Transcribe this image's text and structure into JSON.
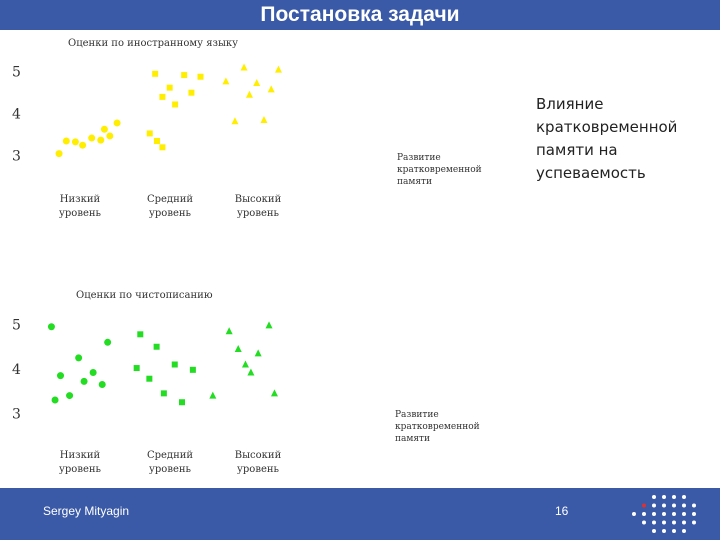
{
  "slide": {
    "title": "Постановка задачи",
    "side_note": "Влияние кратковременной памяти на успеваемость",
    "footer_author": "Sergey Mityagin",
    "page_number": "16"
  },
  "colors": {
    "bar": "#3a5aa8",
    "chart1_marker": "#ffee00",
    "chart2_marker": "#22dd22"
  },
  "icons": {
    "logo": "dot-grid-logo"
  },
  "chart_data": [
    {
      "type": "scatter",
      "title": "Оценки по иностранному языку",
      "xlabel": "Развитие кратковременной памяти",
      "ylabel": "",
      "yticks": [
        "3",
        "4",
        "5"
      ],
      "ylim": [
        2.85,
        5.35
      ],
      "categories": [
        "Низкий уровень",
        "Средний уровень",
        "Высокий уровень"
      ],
      "series": [
        {
          "marker": "circle",
          "points": [
            {
              "x": 0.1,
              "y": 3.05
            },
            {
              "x": 0.18,
              "y": 3.35
            },
            {
              "x": 0.28,
              "y": 3.33
            },
            {
              "x": 0.36,
              "y": 3.25
            },
            {
              "x": 0.46,
              "y": 3.42
            },
            {
              "x": 0.56,
              "y": 3.37
            },
            {
              "x": 0.6,
              "y": 3.63
            },
            {
              "x": 0.66,
              "y": 3.47
            },
            {
              "x": 0.74,
              "y": 3.78
            }
          ]
        },
        {
          "marker": "square",
          "points": [
            {
              "x": 1.1,
              "y": 3.53
            },
            {
              "x": 1.18,
              "y": 3.35
            },
            {
              "x": 1.24,
              "y": 3.2
            },
            {
              "x": 1.16,
              "y": 4.95
            },
            {
              "x": 1.24,
              "y": 4.4
            },
            {
              "x": 1.32,
              "y": 4.62
            },
            {
              "x": 1.38,
              "y": 4.22
            },
            {
              "x": 1.48,
              "y": 4.92
            },
            {
              "x": 1.56,
              "y": 4.5
            },
            {
              "x": 1.66,
              "y": 4.88
            }
          ]
        },
        {
          "marker": "triangle",
          "points": [
            {
              "x": 1.94,
              "y": 4.77
            },
            {
              "x": 2.04,
              "y": 3.82
            },
            {
              "x": 2.14,
              "y": 5.1
            },
            {
              "x": 2.2,
              "y": 4.45
            },
            {
              "x": 2.28,
              "y": 4.73
            },
            {
              "x": 2.36,
              "y": 3.85
            },
            {
              "x": 2.44,
              "y": 4.58
            },
            {
              "x": 2.52,
              "y": 5.05
            }
          ]
        }
      ]
    },
    {
      "type": "scatter",
      "title": "Оценки по чистописанию",
      "xlabel": "Развитие кратковременной памяти",
      "ylabel": "",
      "yticks": [
        "3",
        "4",
        "5"
      ],
      "ylim": [
        2.85,
        5.35
      ],
      "categories": [
        "Низкий уровень",
        "Средний уровень",
        "Высокий уровень"
      ],
      "series": [
        {
          "marker": "circle",
          "points": [
            {
              "x": 0.06,
              "y": 4.95
            },
            {
              "x": 0.1,
              "y": 3.3
            },
            {
              "x": 0.16,
              "y": 3.85
            },
            {
              "x": 0.26,
              "y": 3.4
            },
            {
              "x": 0.36,
              "y": 4.25
            },
            {
              "x": 0.42,
              "y": 3.72
            },
            {
              "x": 0.52,
              "y": 3.92
            },
            {
              "x": 0.62,
              "y": 3.65
            },
            {
              "x": 0.68,
              "y": 4.6
            }
          ]
        },
        {
          "marker": "square",
          "points": [
            {
              "x": 1.0,
              "y": 4.02
            },
            {
              "x": 1.04,
              "y": 4.78
            },
            {
              "x": 1.14,
              "y": 3.78
            },
            {
              "x": 1.22,
              "y": 4.5
            },
            {
              "x": 1.3,
              "y": 3.45
            },
            {
              "x": 1.42,
              "y": 4.1
            },
            {
              "x": 1.5,
              "y": 3.25
            },
            {
              "x": 1.62,
              "y": 3.98
            }
          ]
        },
        {
          "marker": "triangle",
          "points": [
            {
              "x": 1.84,
              "y": 3.4
            },
            {
              "x": 2.02,
              "y": 4.85
            },
            {
              "x": 2.12,
              "y": 4.45
            },
            {
              "x": 2.2,
              "y": 4.1
            },
            {
              "x": 2.26,
              "y": 3.92
            },
            {
              "x": 2.34,
              "y": 4.35
            },
            {
              "x": 2.46,
              "y": 4.98
            },
            {
              "x": 2.52,
              "y": 3.45
            }
          ]
        }
      ]
    }
  ]
}
